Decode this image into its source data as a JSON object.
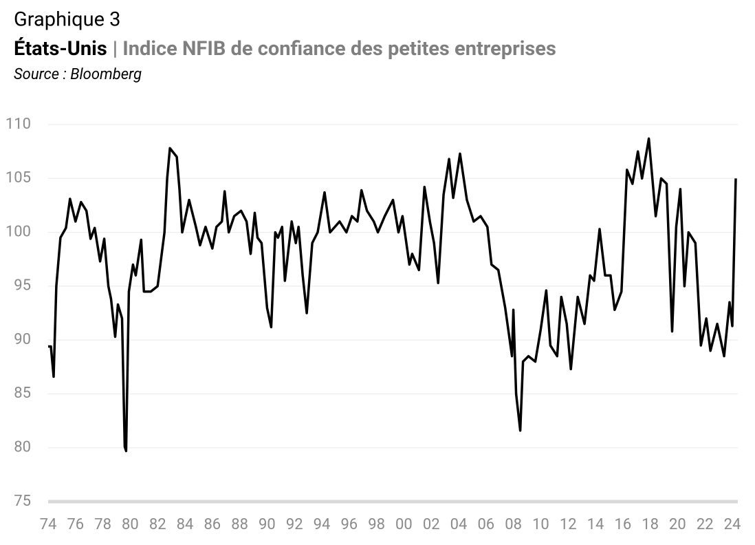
{
  "chart_data": {
    "type": "line",
    "title": "Graphique 3",
    "subtitle_bold": "États-Unis",
    "subtitle": "| Indice NFIB de confiance des petites entreprises",
    "source": "Source : Bloomberg",
    "color": "#000000",
    "grid": true,
    "x": [
      1974.0,
      1974.2,
      1974.4,
      1974.6,
      1974.9,
      1975.3,
      1975.6,
      1976.0,
      1976.4,
      1976.8,
      1977.1,
      1977.4,
      1977.8,
      1978.1,
      1978.4,
      1978.6,
      1978.9,
      1979.1,
      1979.4,
      1979.6,
      1979.7,
      1979.9,
      1980.2,
      1980.4,
      1980.8,
      1981.0,
      1981.5,
      1982.0,
      1982.3,
      1982.5,
      1982.7,
      1982.9,
      1983.4,
      1983.6,
      1983.8,
      1984.3,
      1984.8,
      1985.1,
      1985.5,
      1986.0,
      1986.3,
      1986.7,
      1986.9,
      1987.2,
      1987.6,
      1988.1,
      1988.5,
      1988.8,
      1989.1,
      1989.3,
      1989.6,
      1990.0,
      1990.3,
      1990.6,
      1990.8,
      1991.1,
      1991.3,
      1991.8,
      1992.1,
      1992.3,
      1992.6,
      1992.9,
      1993.3,
      1993.7,
      1994.2,
      1994.6,
      1995.3,
      1995.8,
      1996.2,
      1996.6,
      1996.9,
      1997.3,
      1997.8,
      1998.1,
      1998.6,
      1999.2,
      1999.6,
      1999.9,
      2000.4,
      2000.6,
      2001.1,
      2001.5,
      2001.9,
      2002.2,
      2002.5,
      2002.9,
      2003.3,
      2003.6,
      2004.1,
      2004.6,
      2005.1,
      2005.6,
      2006.1,
      2006.4,
      2006.9,
      2007.4,
      2007.9,
      2008.0,
      2008.2,
      2008.5,
      2008.7,
      2009.1,
      2009.6,
      2010.0,
      2010.4,
      2010.7,
      2011.2,
      2011.5,
      2011.9,
      2012.2,
      2012.7,
      2013.2,
      2013.6,
      2013.9,
      2014.3,
      2014.7,
      2015.1,
      2015.4,
      2015.9,
      2016.3,
      2016.7,
      2017.1,
      2017.4,
      2017.9,
      2018.4,
      2018.8,
      2019.2,
      2019.6,
      2019.9,
      2020.2,
      2020.5,
      2020.8,
      2021.3,
      2021.7,
      2022.1,
      2022.4,
      2022.9,
      2023.4,
      2023.8,
      2024.0,
      2024.25
    ],
    "values": [
      89.4,
      89.4,
      86.6,
      95,
      99.5,
      100.4,
      103.1,
      101,
      102.8,
      102,
      99.4,
      100.4,
      97.3,
      99.4,
      95,
      93.8,
      90.3,
      93.3,
      92,
      80.1,
      79.7,
      94.5,
      97,
      96,
      99.3,
      94.5,
      94.5,
      95,
      98,
      100,
      105,
      107.8,
      107,
      104,
      100,
      103,
      100.5,
      98.8,
      100.5,
      98.5,
      100.5,
      101,
      103.8,
      100,
      101.5,
      102,
      101,
      98,
      101.8,
      99.5,
      99,
      93,
      91.2,
      100,
      99.5,
      100.5,
      95.5,
      101,
      99,
      100.5,
      96,
      92.5,
      99,
      100,
      103.7,
      100,
      101,
      100,
      101.5,
      101,
      103.9,
      102,
      101,
      100,
      101.5,
      103,
      100,
      101.5,
      97,
      98,
      96.5,
      104.2,
      101,
      99,
      95.3,
      103.5,
      106.8,
      103.2,
      107.3,
      103,
      101,
      101.5,
      100.5,
      97,
      96.5,
      93,
      88.5,
      92.8,
      85,
      81.6,
      88,
      88.5,
      88,
      91,
      94.6,
      89.5,
      88.5,
      94,
      91.5,
      87.3,
      94,
      91.5,
      96,
      95.5,
      100.3,
      96,
      96,
      92.8,
      94.5,
      105.8,
      104.5,
      107.5,
      105,
      108.7,
      101.5,
      105,
      104.5,
      90.8,
      100.5,
      104,
      95,
      100,
      99,
      89.5,
      92,
      89,
      91.5,
      88.5,
      93.5,
      91.3,
      105
    ],
    "xlim": [
      1974,
      2024.3
    ],
    "xticks": [
      {
        "value": 1974,
        "label": "74"
      },
      {
        "value": 1976,
        "label": "76"
      },
      {
        "value": 1978,
        "label": "78"
      },
      {
        "value": 1980,
        "label": "80"
      },
      {
        "value": 1982,
        "label": "82"
      },
      {
        "value": 1984,
        "label": "84"
      },
      {
        "value": 1986,
        "label": "86"
      },
      {
        "value": 1988,
        "label": "88"
      },
      {
        "value": 1990,
        "label": "90"
      },
      {
        "value": 1992,
        "label": "92"
      },
      {
        "value": 1994,
        "label": "94"
      },
      {
        "value": 1996,
        "label": "96"
      },
      {
        "value": 1998,
        "label": "98"
      },
      {
        "value": 2000,
        "label": "00"
      },
      {
        "value": 2002,
        "label": "02"
      },
      {
        "value": 2004,
        "label": "04"
      },
      {
        "value": 2006,
        "label": "06"
      },
      {
        "value": 2008,
        "label": "08"
      },
      {
        "value": 2010,
        "label": "10"
      },
      {
        "value": 2012,
        "label": "12"
      },
      {
        "value": 2014,
        "label": "14"
      },
      {
        "value": 2016,
        "label": "16"
      },
      {
        "value": 2018,
        "label": "18"
      },
      {
        "value": 2020,
        "label": "20"
      },
      {
        "value": 2022,
        "label": "22"
      },
      {
        "value": 2024,
        "label": "24"
      }
    ],
    "ylim": [
      75,
      110
    ],
    "yticks": [
      75,
      80,
      85,
      90,
      95,
      100,
      105,
      110
    ]
  }
}
